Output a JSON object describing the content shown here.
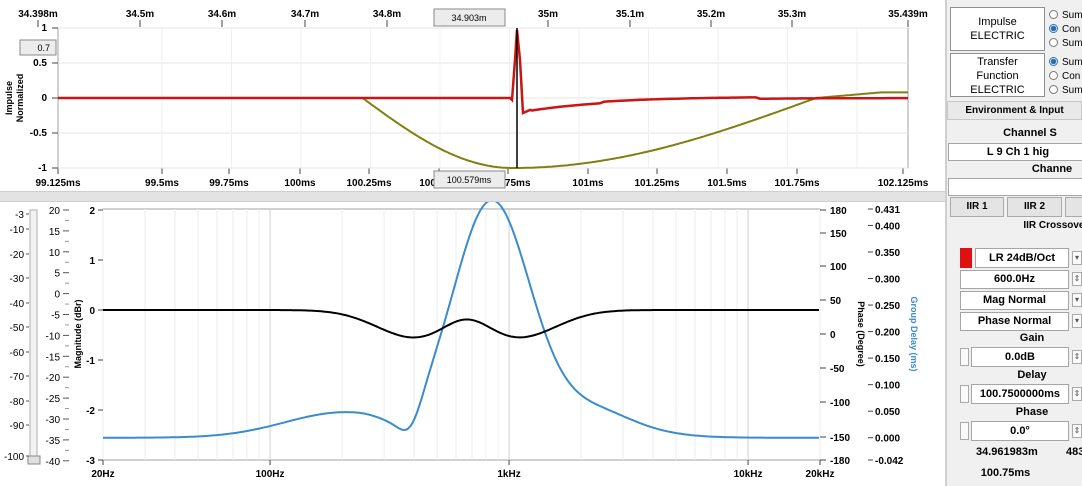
{
  "impulse_plot": {
    "top_axis_labels": [
      "34.398m",
      "34.5m",
      "34.6m",
      "34.7m",
      "34.8m",
      "35m",
      "35.1m",
      "35.2m",
      "35.3m",
      "35.439m"
    ],
    "cursor_top_value": "34.903m",
    "bottom_axis_labels": [
      "99.125ms",
      "99.5ms",
      "99.75ms",
      "100ms",
      "100.25ms",
      "100.5ms",
      "100.75ms",
      "101ms",
      "101.25ms",
      "101.5ms",
      "101.75ms",
      "102.125ms"
    ],
    "cursor_bottom_value": "100.579ms",
    "y_ticks": [
      "1",
      "0.5",
      "0",
      "-0.5",
      "-1"
    ],
    "cursor_y_value": "0.7",
    "y_label_line1": "Impulse",
    "y_label_line2": "Normalized",
    "colors": {
      "impulse": "#cc1414",
      "step": "#808010",
      "cursor": "#000000"
    }
  },
  "freq_plot": {
    "slider_ticks": [
      "-3",
      "-10",
      "-20",
      "-30",
      "-40",
      "-50",
      "-60",
      "-70",
      "-80",
      "-90",
      "-100"
    ],
    "left_ticks": [
      "20",
      "15",
      "10",
      "5",
      "0",
      "-5",
      "-10",
      "-15",
      "-20",
      "-25",
      "-30",
      "-35",
      "-40"
    ],
    "mag_ticks": [
      "2",
      "1",
      "0",
      "-1",
      "-2",
      "-3"
    ],
    "mag_label": "Magnitude (dBr)",
    "phase_ticks": [
      "180",
      "150",
      "100",
      "50",
      "0",
      "-50",
      "-100",
      "-150",
      "-180"
    ],
    "phase_label": "Phase (Degree)",
    "gd_ticks": [
      "0.431",
      "0.400",
      "0.350",
      "0.300",
      "0.250",
      "0.200",
      "0.150",
      "0.100",
      "0.050",
      "0.000",
      "-0.042"
    ],
    "gd_label": "Group Delay (ms)",
    "x_ticks": [
      "20Hz",
      "100Hz",
      "1kHz",
      "10kHz",
      "20kHz"
    ],
    "colors": {
      "magnitude": "#000000",
      "group_delay": "#3a8ccc"
    }
  },
  "panel": {
    "impulse_button_line1": "Impulse",
    "impulse_button_line2": "ELECTRIC",
    "impulse_radios": [
      "Sum",
      "Con",
      "Sum"
    ],
    "transfer_button_line1": "Transfer",
    "transfer_button_line2": "Function",
    "transfer_button_line3": "ELECTRIC",
    "transfer_radios": [
      "Sum",
      "Con",
      "Sum"
    ],
    "env_label": "Environment & Input",
    "channel_section": "Channel S",
    "channel_value": "L 9 Ch 1 hig",
    "channel_label": "Channe",
    "tabs": [
      "IIR 1",
      "IIR 2"
    ],
    "crossover_label": "IIR Crossover, C",
    "filter_type": "LR 24dB/Oct",
    "frequency": "600.0Hz",
    "mag_mode": "Mag Normal",
    "phase_mode": "Phase Normal",
    "gain_label": "Gain",
    "gain_value": "0.0dB",
    "delay_label": "Delay",
    "delay_value": "100.7500000ms",
    "phase_label": "Phase",
    "phase_value": "0.0°",
    "readout_left": "34.961983m",
    "readout_right": "483",
    "readout_bottom": "100.75ms",
    "accent_color": "#dd1111"
  }
}
